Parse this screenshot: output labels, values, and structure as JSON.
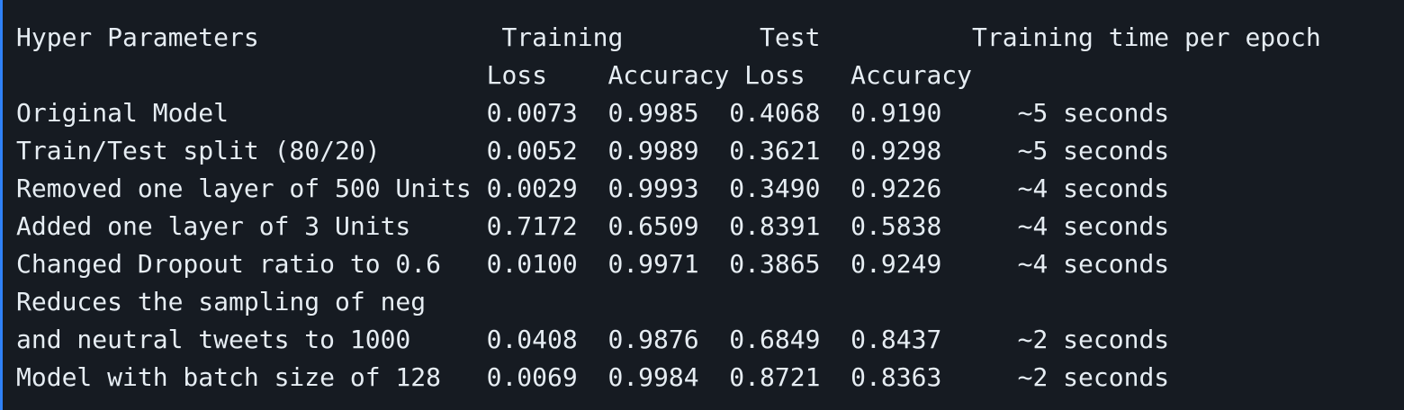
{
  "lines": [
    "Hyper Parameters                Training         Test          Training time per epoch",
    "                               Loss    Accuracy Loss   Accuracy",
    "Original Model                 0.0073  0.9985  0.4068  0.9190     ~5 seconds",
    "Train/Test split (80/20)       0.0052  0.9989  0.3621  0.9298     ~5 seconds",
    "Removed one layer of 500 Units 0.0029  0.9993  0.3490  0.9226     ~4 seconds",
    "Added one layer of 3 Units     0.7172  0.6509  0.8391  0.5838     ~4 seconds",
    "Changed Dropout ratio to 0.6   0.0100  0.9971  0.3865  0.9249     ~4 seconds",
    "Reduces the sampling of neg",
    "and neutral tweets to 1000     0.0408  0.9876  0.6849  0.8437     ~2 seconds",
    "Model with batch size of 128   0.0069  0.9984  0.8721  0.8363     ~2 seconds"
  ]
}
